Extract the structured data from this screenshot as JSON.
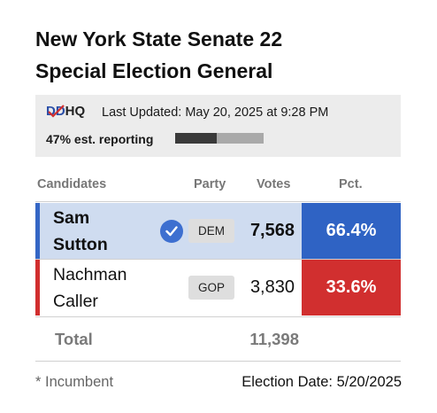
{
  "title": {
    "line1": "New York State Senate 22",
    "line2": "Special Election General"
  },
  "status": {
    "logo_prefix": "DD",
    "logo_suffix": "HQ",
    "last_updated": "Last Updated: May 20, 2025 at 9:28 PM",
    "reporting_label": "47% est. reporting",
    "reporting_fraction": 0.47,
    "reporting_dark_fraction": 0.47
  },
  "table": {
    "headers": {
      "candidates": "Candidates",
      "party": "Party",
      "votes": "Votes",
      "pct": "Pct."
    },
    "rows": [
      {
        "first": "Sam",
        "last": "Sutton",
        "party": "DEM",
        "votes": "7,568",
        "pct": "66.4%",
        "winner": true,
        "stripe_color": "#3466c5",
        "pct_bg": "#2f63c4",
        "row_bg": "#cfdcf0"
      },
      {
        "first": "Nachman",
        "last": "Caller",
        "party": "GOP",
        "votes": "3,830",
        "pct": "33.6%",
        "winner": false,
        "stripe_color": "#d12f2f",
        "pct_bg": "#d12f2f",
        "row_bg": "#ffffff"
      }
    ],
    "total_label": "Total",
    "total_votes": "11,398"
  },
  "footer": {
    "incumbent_note": "* Incumbent",
    "election_date": "Election Date: 5/20/2025"
  },
  "colors": {
    "accent_blue": "#2f63c4",
    "accent_red": "#d12f2f",
    "check_icon": "#3d6fd0"
  },
  "icons": {
    "winner": "check-circle-icon"
  }
}
